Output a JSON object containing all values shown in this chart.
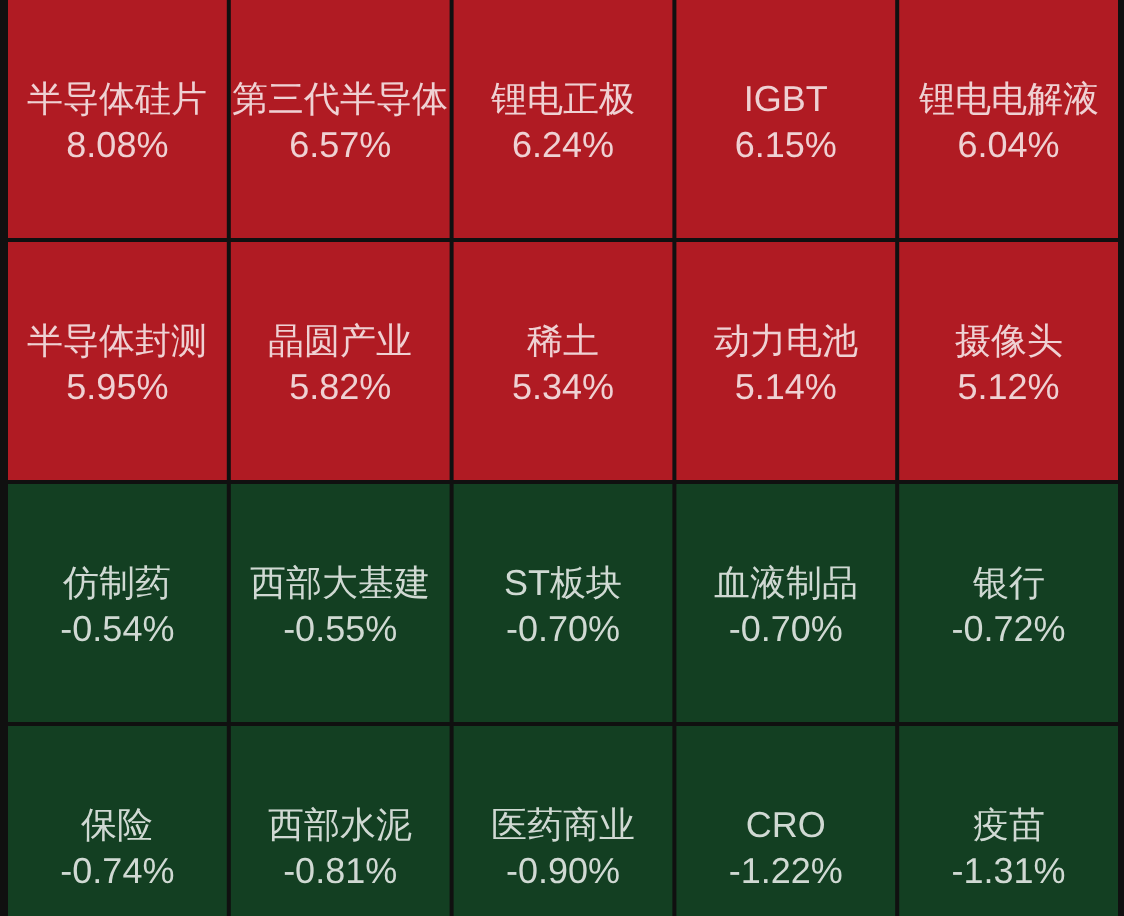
{
  "chart_data": {
    "type": "other",
    "categories": [
      "半导体硅片",
      "第三代半导体",
      "锂电正极",
      "IGBT",
      "锂电电解液",
      "半导体封测",
      "晶圆产业",
      "稀土",
      "动力电池",
      "摄像头",
      "仿制药",
      "西部大基建",
      "ST板块",
      "血液制品",
      "银行",
      "保险",
      "西部水泥",
      "医药商业",
      "CRO",
      "疫苗"
    ],
    "values": [
      8.08,
      6.57,
      6.24,
      6.15,
      6.04,
      5.95,
      5.82,
      5.34,
      5.14,
      5.12,
      -0.54,
      -0.55,
      -0.7,
      -0.7,
      -0.72,
      -0.74,
      -0.81,
      -0.9,
      -1.22,
      -1.31
    ],
    "value_labels": [
      "8.08%",
      "6.57%",
      "6.24%",
      "6.15%",
      "6.04%",
      "5.95%",
      "5.82%",
      "5.34%",
      "5.14%",
      "5.12%",
      "-0.54%",
      "-0.55%",
      "-0.70%",
      "-0.70%",
      "-0.72%",
      "-0.74%",
      "-0.81%",
      "-0.90%",
      "-1.22%",
      "-1.31%"
    ],
    "colors": [
      "#b01b23",
      "#b01b23",
      "#b01b23",
      "#b01b23",
      "#b01b23",
      "#b01b23",
      "#b01b23",
      "#b01b23",
      "#b01b23",
      "#b01b23",
      "#133f22",
      "#133f22",
      "#133f22",
      "#133f22",
      "#133f22",
      "#133f22",
      "#133f22",
      "#133f22",
      "#133f22",
      "#133f22"
    ]
  }
}
